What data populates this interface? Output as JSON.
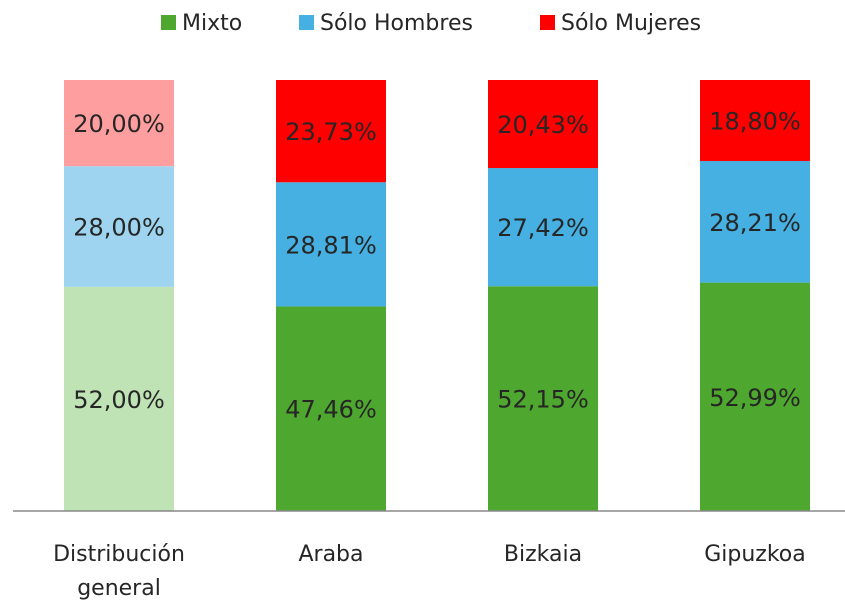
{
  "chart_data": {
    "type": "stacked_bar",
    "categories": [
      "Distribución general",
      "Araba",
      "Bizkaia",
      "Gipuzkoa"
    ],
    "ylim": [
      0,
      100
    ],
    "legend": "top",
    "series": [
      {
        "name": "Mixto",
        "color": "#4ea72e",
        "colors": [
          "#bfe3b4",
          "#4ea72e",
          "#4ea72e",
          "#4ea72e"
        ],
        "values": [
          52.0,
          47.46,
          52.15,
          52.99
        ],
        "value_labels": [
          "52,00%",
          "47,46%",
          "52,15%",
          "52,99%"
        ]
      },
      {
        "name": "Sólo Hombres",
        "color": "#45b0e1",
        "colors": [
          "#9ed4ef",
          "#45b0e1",
          "#45b0e1",
          "#45b0e1"
        ],
        "values": [
          28.0,
          28.81,
          27.42,
          28.21
        ],
        "value_labels": [
          "28,00%",
          "28,81%",
          "27,42%",
          "28,21%"
        ]
      },
      {
        "name": "Sólo Mujeres",
        "color": "#ff0000",
        "colors": [
          "#ff9e9e",
          "#ff0000",
          "#ff0000",
          "#ff0000"
        ],
        "values": [
          20.0,
          23.73,
          20.43,
          18.8
        ],
        "value_labels": [
          "20,00%",
          "23,73%",
          "20,43%",
          "18,80%"
        ]
      }
    ]
  }
}
